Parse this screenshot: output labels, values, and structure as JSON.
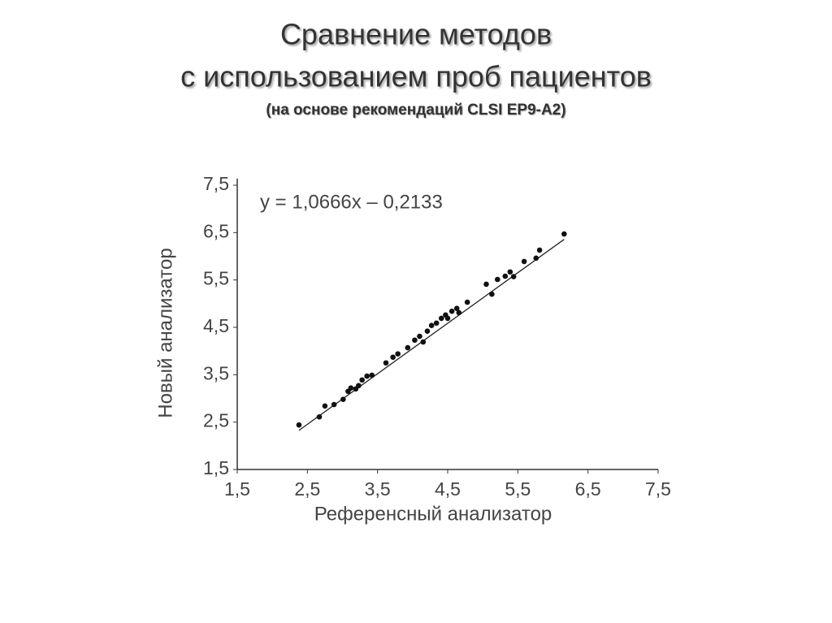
{
  "chart_data": {
    "type": "scatter",
    "title": "Сравнение методов",
    "title_line2": "с использованием проб пациентов",
    "subtitle": "(на основе рекомендаций CLSI EP9-A2)",
    "x_label": "Референсный анализатор",
    "y_label": "Новый анализатор",
    "trendline": {
      "label": "y = 1,0666x – 0,2133",
      "slope": 1.0666,
      "intercept": -0.2133
    },
    "color": "#111111",
    "x": [
      2.38,
      2.67,
      2.75,
      2.88,
      3.01,
      3.08,
      3.12,
      3.19,
      3.23,
      3.28,
      3.35,
      3.42,
      3.62,
      3.72,
      3.79,
      3.93,
      4.03,
      4.1,
      4.15,
      4.21,
      4.27,
      4.34,
      4.41,
      4.47,
      4.5,
      4.56,
      4.63,
      4.66,
      4.78,
      5.05,
      5.13,
      5.21,
      5.32,
      5.39,
      5.44,
      5.59,
      5.76,
      5.81,
      6.16
    ],
    "y": [
      2.44,
      2.61,
      2.84,
      2.87,
      2.98,
      3.15,
      3.22,
      3.2,
      3.27,
      3.39,
      3.47,
      3.49,
      3.75,
      3.87,
      3.94,
      4.07,
      4.23,
      4.31,
      4.19,
      4.42,
      4.54,
      4.59,
      4.69,
      4.76,
      4.69,
      4.84,
      4.9,
      4.81,
      5.03,
      5.41,
      5.2,
      5.51,
      5.58,
      5.67,
      5.57,
      5.89,
      5.96,
      6.13,
      6.47
    ],
    "xlim": [
      1.5,
      7.5
    ],
    "ylim": [
      1.5,
      7.5
    ],
    "xticks": [
      {
        "value": 1.5,
        "label": "1,5"
      },
      {
        "value": 2.5,
        "label": "2,5"
      },
      {
        "value": 3.5,
        "label": "3,5"
      },
      {
        "value": 4.5,
        "label": "4,5"
      },
      {
        "value": 5.5,
        "label": "5,5"
      },
      {
        "value": 6.5,
        "label": "6,5"
      },
      {
        "value": 7.5,
        "label": "7,5"
      }
    ],
    "yticks": [
      {
        "value": 1.5,
        "label": "1,5"
      },
      {
        "value": 2.5,
        "label": "2,5"
      },
      {
        "value": 3.5,
        "label": "3,5"
      },
      {
        "value": 4.5,
        "label": "4,5"
      },
      {
        "value": 5.5,
        "label": "5,5"
      },
      {
        "value": 6.5,
        "label": "6,5"
      },
      {
        "value": 7.5,
        "label": "7,5"
      }
    ]
  }
}
